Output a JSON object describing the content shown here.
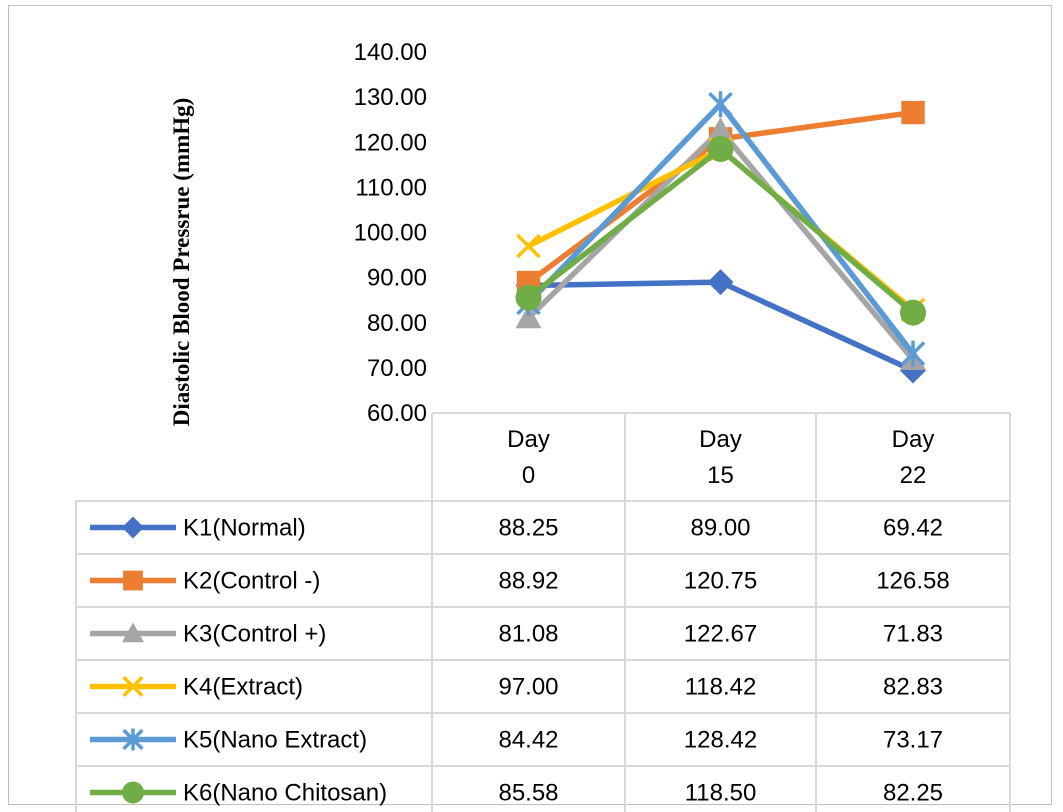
{
  "chart_data": {
    "type": "line",
    "ylabel": "Diastolic Blood Pressrue (mmHg)",
    "ylim": [
      60,
      140
    ],
    "yticks": [
      "60.00",
      "70.00",
      "80.00",
      "90.00",
      "100.00",
      "110.00",
      "120.00",
      "130.00",
      "140.00"
    ],
    "categories": [
      [
        "Day",
        "0"
      ],
      [
        "Day",
        "15"
      ],
      [
        "Day",
        "22"
      ]
    ],
    "legend_position": "data-table",
    "grid": false,
    "series": [
      {
        "name": "K1(Normal)",
        "values": [
          88.25,
          89.0,
          69.42
        ],
        "labels": [
          "88.25",
          "89.00",
          "69.42"
        ],
        "color": "#4472c4",
        "marker": "diamond"
      },
      {
        "name": "K2(Control -)",
        "values": [
          88.92,
          120.75,
          126.58
        ],
        "labels": [
          "88.92",
          "120.75",
          "126.58"
        ],
        "color": "#ed7d31",
        "marker": "square"
      },
      {
        "name": "K3(Control +)",
        "values": [
          81.08,
          122.67,
          71.83
        ],
        "labels": [
          "81.08",
          "122.67",
          "71.83"
        ],
        "color": "#a5a5a5",
        "marker": "triangle"
      },
      {
        "name": "K4(Extract)",
        "values": [
          97.0,
          118.42,
          82.83
        ],
        "labels": [
          "97.00",
          "118.42",
          "82.83"
        ],
        "color": "#ffc000",
        "marker": "x"
      },
      {
        "name": "K5(Nano Extract)",
        "values": [
          84.42,
          128.42,
          73.17
        ],
        "labels": [
          "84.42",
          "128.42",
          "73.17"
        ],
        "color": "#5b9bd5",
        "marker": "star"
      },
      {
        "name": "K6(Nano Chitosan)",
        "values": [
          85.58,
          118.5,
          82.25
        ],
        "labels": [
          "85.58",
          "118.50",
          "82.25"
        ],
        "color": "#70ad47",
        "marker": "circle"
      }
    ]
  }
}
